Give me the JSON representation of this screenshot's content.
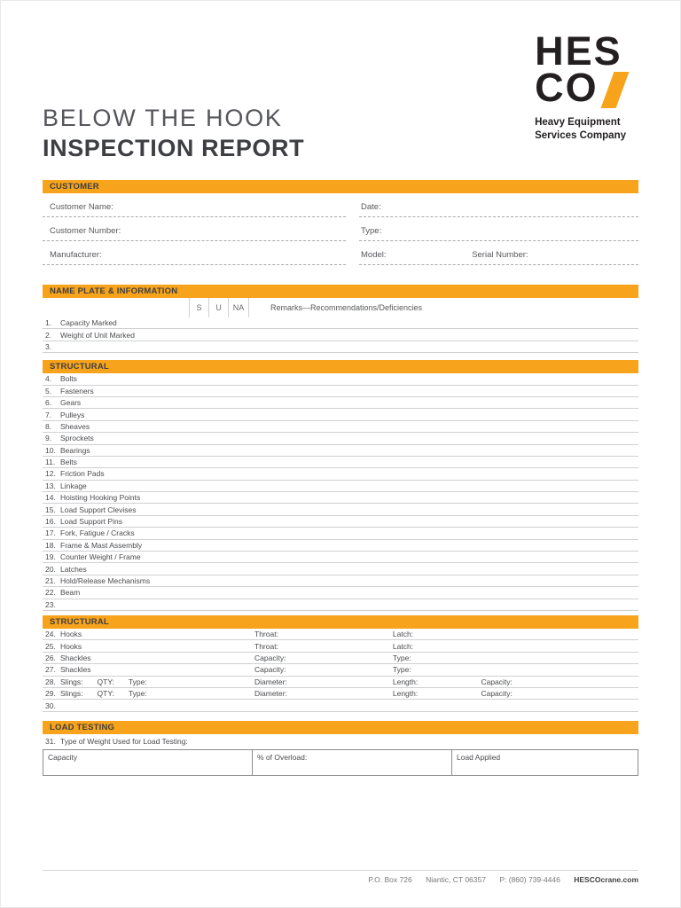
{
  "colors": {
    "accent": "#F7A31C",
    "text_dark": "#3E3F42",
    "text_gray": "#58595B"
  },
  "logo": {
    "line1": "HES",
    "line2": "CO",
    "tagline_line1": "Heavy Equipment",
    "tagline_line2": "Services Company"
  },
  "title": {
    "line1": "BELOW THE HOOK",
    "line2": "INSPECTION REPORT"
  },
  "customer": {
    "header": "CUSTOMER",
    "rows": [
      {
        "left": "Customer Name:",
        "right1": "Date:"
      },
      {
        "left": "Customer Number:",
        "right1": "Type:"
      },
      {
        "left": "Manufacturer:",
        "right1": "Model:",
        "right2": "Serial Number:"
      }
    ]
  },
  "name_plate": {
    "header": "NAME PLATE & INFORMATION",
    "col_s": "S",
    "col_u": "U",
    "col_na": "NA",
    "remarks_header": "Remarks—Recommendations/Deficiencies",
    "rows": [
      {
        "num": "1.",
        "label": "Capacity Marked"
      },
      {
        "num": "2.",
        "label": "Weight of Unit Marked"
      },
      {
        "num": "3.",
        "label": ""
      }
    ]
  },
  "structural1": {
    "header": "STRUCTURAL",
    "rows": [
      {
        "num": "4.",
        "label": "Bolts"
      },
      {
        "num": "5.",
        "label": "Fasteners"
      },
      {
        "num": "6.",
        "label": "Gears"
      },
      {
        "num": "7.",
        "label": "Pulleys"
      },
      {
        "num": "8.",
        "label": "Sheaves"
      },
      {
        "num": "9.",
        "label": "Sprockets"
      },
      {
        "num": "10.",
        "label": "Bearings"
      },
      {
        "num": "11.",
        "label": "Belts"
      },
      {
        "num": "12.",
        "label": "Friction Pads"
      },
      {
        "num": "13.",
        "label": "Linkage"
      },
      {
        "num": "14.",
        "label": "Hoisting Hooking Points"
      },
      {
        "num": "15.",
        "label": "Load Support Clevises"
      },
      {
        "num": "16.",
        "label": "Load Support Pins"
      },
      {
        "num": "17.",
        "label": "Fork, Fatigue / Cracks"
      },
      {
        "num": "18.",
        "label": "Frame & Mast Assembly"
      },
      {
        "num": "19.",
        "label": "Counter Weight / Frame"
      },
      {
        "num": "20.",
        "label": "Latches"
      },
      {
        "num": "21.",
        "label": "Hold/Release Mechanisms"
      },
      {
        "num": "22.",
        "label": "Beam"
      },
      {
        "num": "23.",
        "label": ""
      }
    ]
  },
  "structural2": {
    "header": "STRUCTURAL",
    "rows": [
      {
        "num": "24.",
        "label": "Hooks",
        "f1": "Throat:",
        "f2": "Latch:"
      },
      {
        "num": "25.",
        "label": "Hooks",
        "f1": "Throat:",
        "f2": "Latch:"
      },
      {
        "num": "26.",
        "label": "Shackles",
        "f1": "Capacity:",
        "f2": "Type:"
      },
      {
        "num": "27.",
        "label": "Shackles",
        "f1": "Capacity:",
        "f2": "Type:"
      },
      {
        "num": "28.",
        "label": "Slings:",
        "qty": "QTY:",
        "type": "Type:",
        "f1": "Diameter:",
        "f2": "Length:",
        "f3": "Capacity:"
      },
      {
        "num": "29.",
        "label": "Slings:",
        "qty": "QTY:",
        "type": "Type:",
        "f1": "Diameter:",
        "f2": "Length:",
        "f3": "Capacity:"
      },
      {
        "num": "30.",
        "label": ""
      }
    ]
  },
  "load_testing": {
    "header": "LOAD TESTING",
    "row31_num": "31.",
    "row31_label": "Type of Weight Used for Load Testing:",
    "cells": [
      "Capacity",
      "% of Overload:",
      "Load Applied"
    ]
  },
  "footer": {
    "address": "P.O. Box 726",
    "city": "Niantic, CT 06357",
    "phone": "P: (860) 739-4446",
    "website": "HESCOcrane.com"
  }
}
